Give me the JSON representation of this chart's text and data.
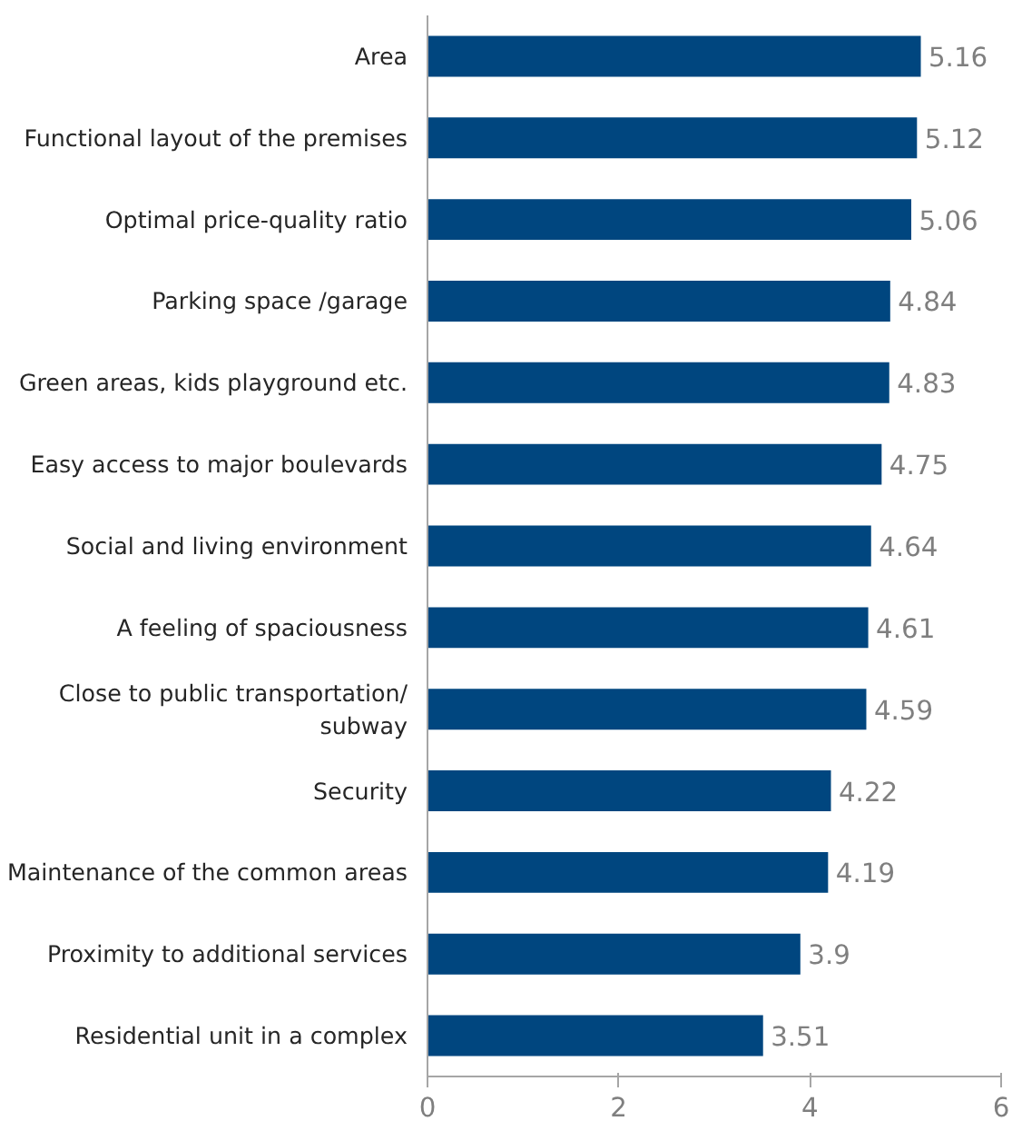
{
  "chart_data": {
    "type": "bar",
    "orientation": "horizontal",
    "categories": [
      "Area",
      "Functional layout of the premises",
      "Optimal price-quality ratio",
      "Parking space /garage",
      "Green areas, kids playground etc.",
      "Easy access to major boulevards",
      "Social and living environment",
      "A feeling of spaciousness",
      "Close to public transportation/ subway",
      "Security",
      "Maintenance of the common areas",
      "Proximity to additional services",
      "Residential unit in a complex"
    ],
    "values": [
      5.16,
      5.12,
      5.06,
      4.84,
      4.83,
      4.75,
      4.64,
      4.61,
      4.59,
      4.22,
      4.19,
      3.9,
      3.51
    ],
    "color": "#00467f",
    "xlim": [
      0,
      6
    ],
    "xticks": [
      0,
      2,
      4,
      6
    ],
    "data_labels": true,
    "grid": false
  }
}
